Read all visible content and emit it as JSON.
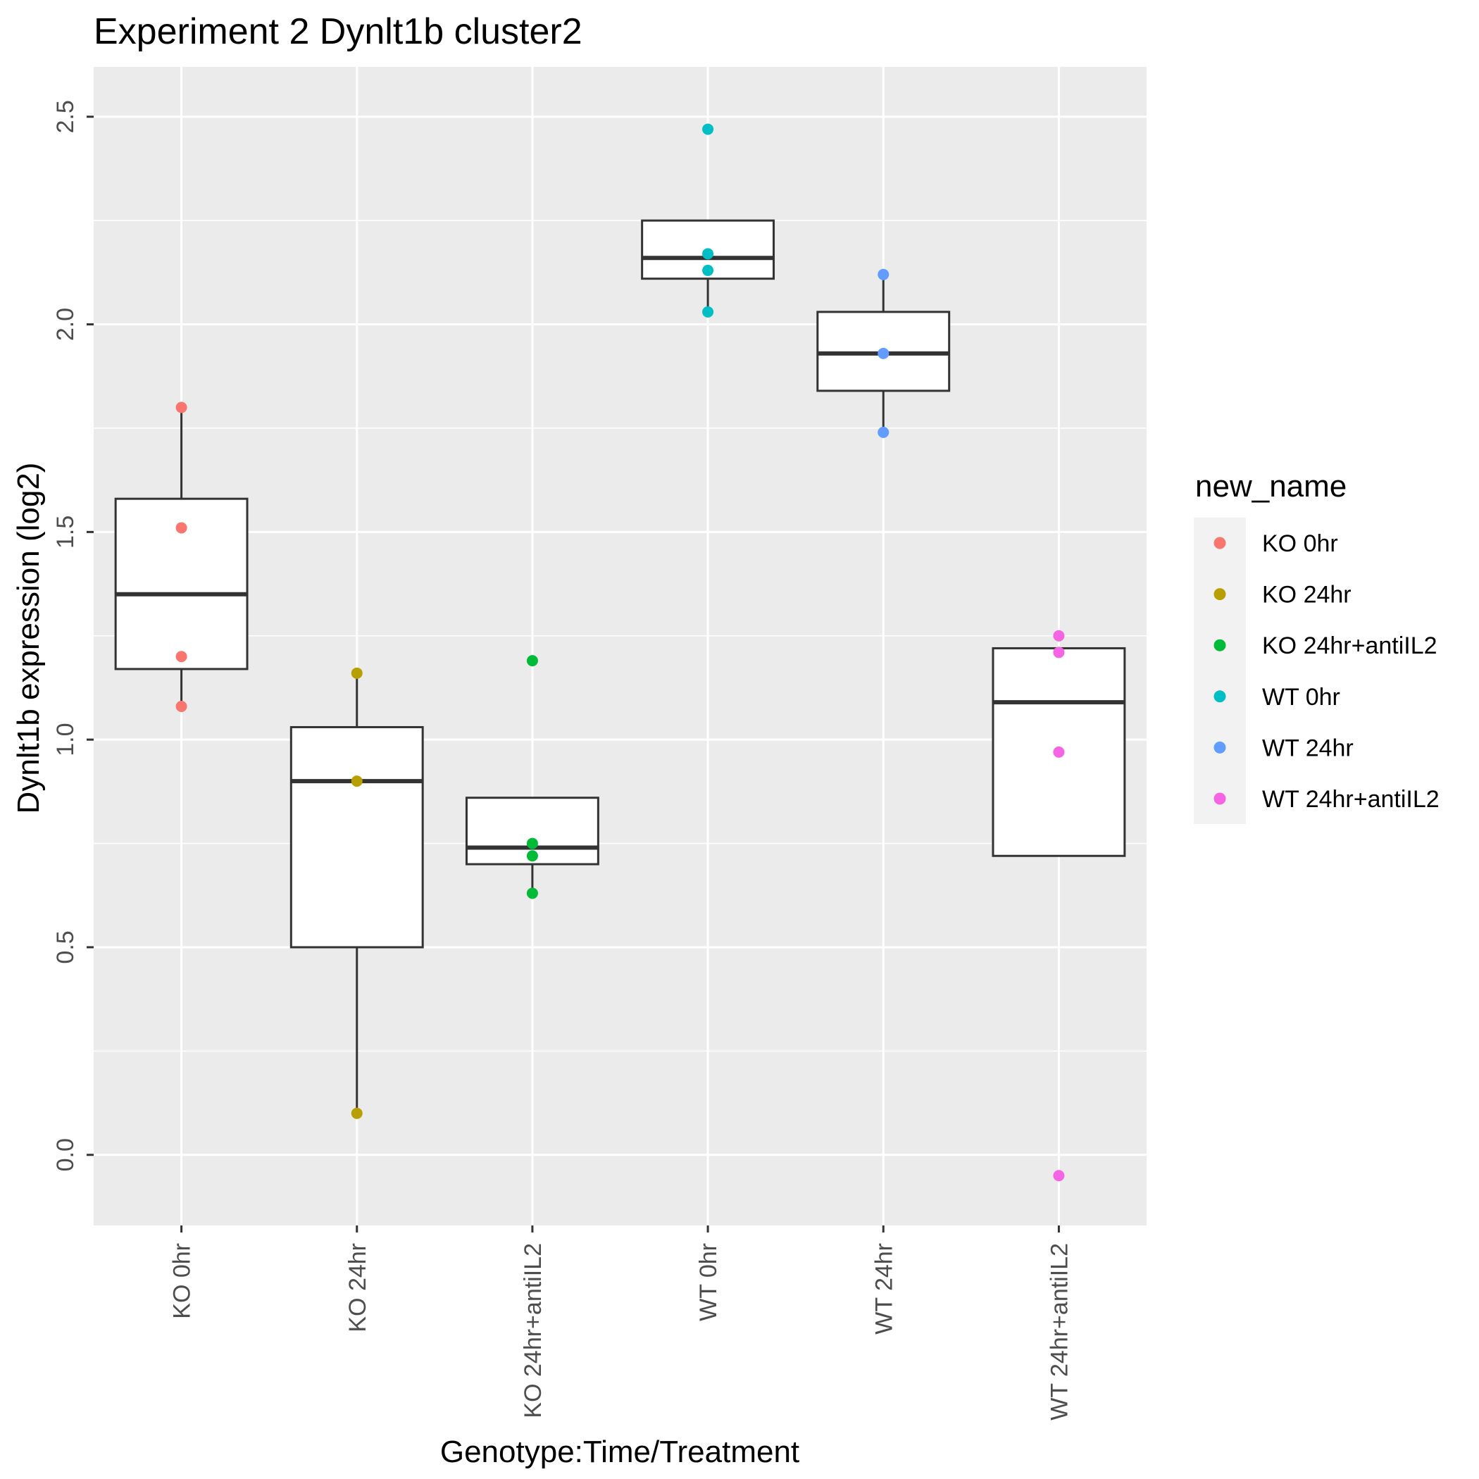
{
  "chart_data": {
    "type": "boxplot",
    "title": "Experiment 2 Dynlt1b cluster2",
    "xlabel": "Genotype:Time/Treatment",
    "ylabel": "Dynlt1b expression (log2)",
    "ylim": [
      -0.17,
      2.62
    ],
    "y_ticks": [
      0.0,
      0.5,
      1.0,
      1.5,
      2.0,
      2.5
    ],
    "y_tick_labels": [
      "0.0",
      "0.5",
      "1.0",
      "1.5",
      "2.0",
      "2.5"
    ],
    "grid": true,
    "legend_title": "new_name",
    "legend_position": "right",
    "categories": [
      "KO 0hr",
      "KO 24hr",
      "KO 24hr+antiIL2",
      "WT 0hr",
      "WT 24hr",
      "WT 24hr+antiIL2"
    ],
    "colors": [
      "#F8766D",
      "#B79F00",
      "#00BA38",
      "#00BFC4",
      "#619CFF",
      "#F564E3"
    ],
    "boxes": [
      {
        "name": "KO 0hr",
        "q1": 1.17,
        "median": 1.35,
        "q3": 1.58,
        "whisker_low": 1.08,
        "whisker_high": 1.8
      },
      {
        "name": "KO 24hr",
        "q1": 0.5,
        "median": 0.9,
        "q3": 1.03,
        "whisker_low": 0.1,
        "whisker_high": 1.16
      },
      {
        "name": "KO 24hr+antiIL2",
        "q1": 0.7,
        "median": 0.74,
        "q3": 0.86,
        "whisker_low": 0.63,
        "whisker_high": 0.86
      },
      {
        "name": "WT 0hr",
        "q1": 2.11,
        "median": 2.16,
        "q3": 2.25,
        "whisker_low": 2.03,
        "whisker_high": 2.25
      },
      {
        "name": "WT 24hr",
        "q1": 1.84,
        "median": 1.93,
        "q3": 2.03,
        "whisker_low": 1.74,
        "whisker_high": 2.12
      },
      {
        "name": "WT 24hr+antiIL2",
        "q1": 0.72,
        "median": 1.09,
        "q3": 1.22,
        "whisker_low": 0.72,
        "whisker_high": 1.22
      }
    ],
    "series": [
      {
        "name": "KO 0hr",
        "values": [
          1.8,
          1.51,
          1.2,
          1.08
        ]
      },
      {
        "name": "KO 24hr",
        "values": [
          1.16,
          0.9,
          0.1
        ]
      },
      {
        "name": "KO 24hr+antiIL2",
        "values": [
          1.19,
          0.75,
          0.72,
          0.63
        ]
      },
      {
        "name": "WT 0hr",
        "values": [
          2.47,
          2.17,
          2.13,
          2.03
        ]
      },
      {
        "name": "WT 24hr",
        "values": [
          2.12,
          1.93,
          1.74
        ]
      },
      {
        "name": "WT 24hr+antiIL2",
        "values": [
          1.25,
          1.21,
          0.97,
          -0.05
        ]
      }
    ]
  }
}
